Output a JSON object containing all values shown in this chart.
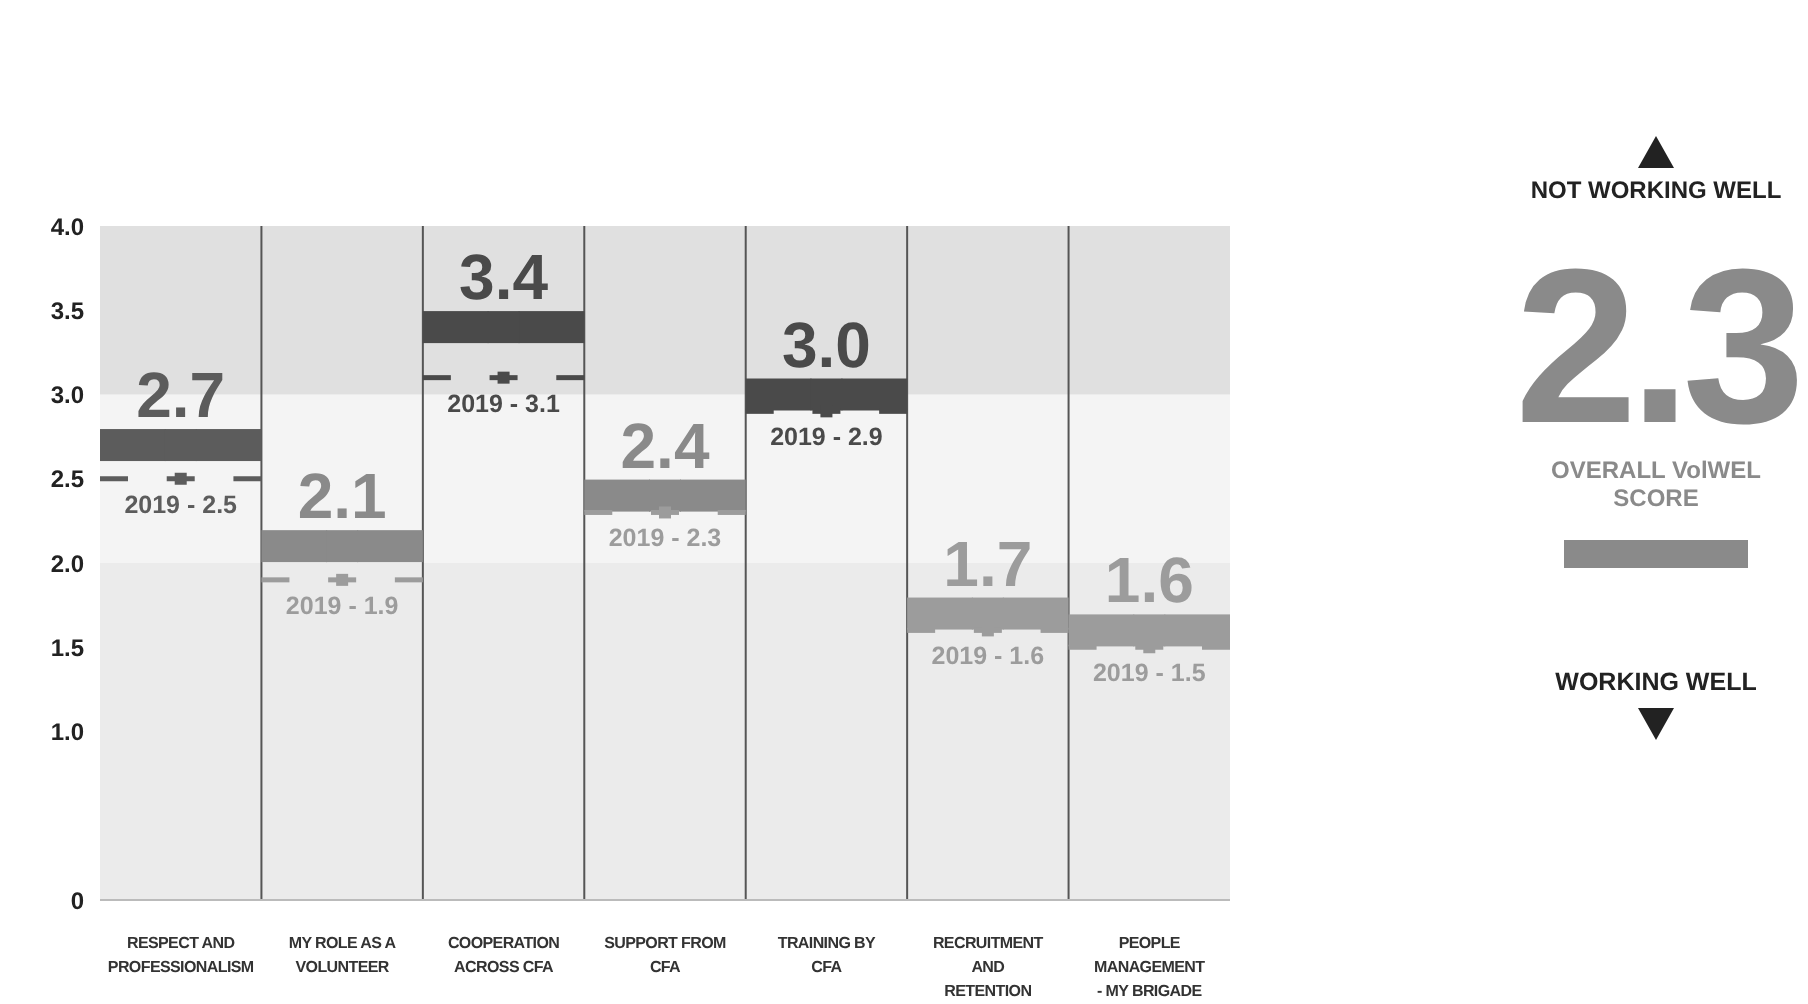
{
  "chart_data": {
    "type": "scatter",
    "categories": [
      "RESPECT AND PROFESSIONALISM",
      "MY ROLE AS A VOLUNTEER",
      "COOPERATION ACROSS CFA",
      "SUPPORT FROM CFA",
      "TRAINING BY CFA",
      "RECRUITMENT AND RETENTION",
      "PEOPLE MANAGEMENT - MY BRIGADE"
    ],
    "series": [
      {
        "colors": [
          "#5c5c5c",
          "#8a8a8a",
          "#4a4a4a",
          "#8a8a8a",
          "#4a4a4a",
          "#9c9c9c",
          "#9c9c9c"
        ],
        "values": [
          2.7,
          2.1,
          3.4,
          2.4,
          3.0,
          1.7,
          1.6
        ],
        "value_labels": [
          "2.7",
          "2.1",
          "3.4",
          "2.4",
          "3.0",
          "1.7",
          "1.6"
        ],
        "marker": "square"
      },
      {
        "colors": [
          "#5c5c5c",
          "#9c9c9c",
          "#4a4a4a",
          "#9c9c9c",
          "#4a4a4a",
          "#9c9c9c",
          "#9c9c9c"
        ],
        "values": [
          2.5,
          1.9,
          3.1,
          2.3,
          2.9,
          1.6,
          1.5
        ],
        "marker": "square",
        "value_labels": [
          "2019 - 2.5",
          "2019 - 1.9",
          "2019 - 3.1",
          "2019 - 2.3",
          "2019 - 2.9",
          "2019 - 1.6",
          "2019 - 1.5"
        ],
        "line_style": "dashed"
      }
    ],
    "ylim": [
      0,
      4
    ],
    "yticks": [
      0,
      {
        "value": 1,
        "label": "1.0"
      },
      {
        "value": 1.5,
        "label": "1.5"
      },
      {
        "value": 2,
        "label": "2.0"
      },
      {
        "value": 2.5,
        "label": "2.5"
      },
      {
        "value": 3,
        "label": "3.0"
      },
      {
        "value": 3.5,
        "label": "3.5"
      },
      {
        "value": 4,
        "label": "4.0"
      }
    ],
    "bands": [
      {
        "axis": "y",
        "from": 0,
        "to": 2,
        "color": "#ebebeb"
      },
      {
        "axis": "y",
        "from": 2,
        "to": 3,
        "color": "#f4f4f4"
      },
      {
        "axis": "y",
        "from": 3,
        "to": 4,
        "color": "#e0e0e0"
      }
    ],
    "grid": "x",
    "annotations": [
      "NOT WORKING WELL",
      "2.3",
      "OVERALL VolWEL SCORE",
      "WORKING WELL"
    ]
  }
}
